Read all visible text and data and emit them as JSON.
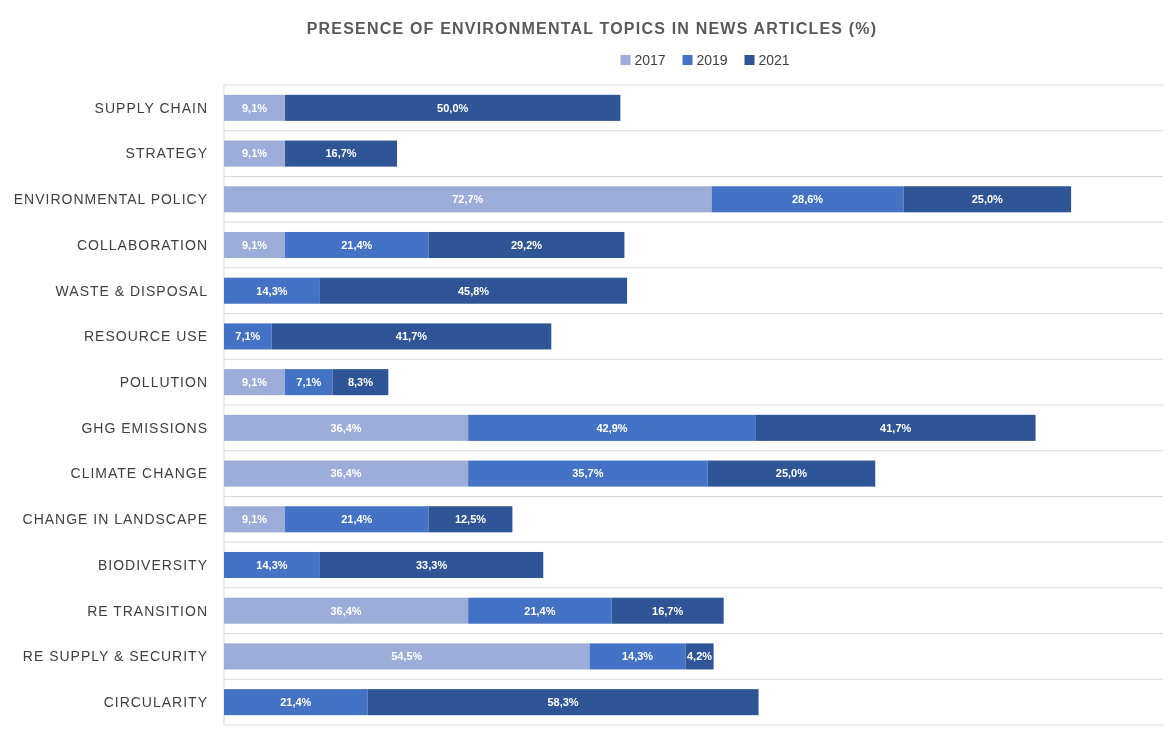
{
  "chart_data": {
    "type": "bar",
    "orientation": "horizontal",
    "stacked": true,
    "title": "PRESENCE OF ENVIRONMENTAL TOPICS IN NEWS ARTICLES (%)",
    "categories": [
      "SUPPLY CHAIN",
      "STRATEGY",
      "ENVIRONMENTAL POLICY",
      "COLLABORATION",
      "WASTE & DISPOSAL",
      "RESOURCE USE",
      "POLLUTION",
      "GHG EMISSIONS",
      "CLIMATE CHANGE",
      "CHANGE IN LANDSCAPE",
      "BIODIVERSITY",
      "RE TRANSITION",
      "RE SUPPLY & SECURITY",
      "CIRCULARITY"
    ],
    "series": [
      {
        "name": "2017",
        "color": "#9dadd9",
        "values": [
          9.1,
          9.1,
          72.7,
          9.1,
          null,
          null,
          9.1,
          36.4,
          36.4,
          9.1,
          null,
          36.4,
          54.5,
          null
        ],
        "value_labels": [
          "9,1%",
          "9,1%",
          "72,7%",
          "9,1%",
          null,
          null,
          "9,1%",
          "36,4%",
          "36,4%",
          "9,1%",
          null,
          "36,4%",
          "54,5%",
          null
        ]
      },
      {
        "name": "2019",
        "color": "#4472c4",
        "values": [
          null,
          null,
          28.6,
          21.4,
          14.3,
          7.1,
          7.1,
          42.9,
          35.7,
          21.4,
          14.3,
          21.4,
          14.3,
          21.4
        ],
        "value_labels": [
          null,
          null,
          "28,6%",
          "21,4%",
          "14,3%",
          "7,1%",
          "7,1%",
          "42,9%",
          "35,7%",
          "21,4%",
          "14,3%",
          "21,4%",
          "14,3%",
          "21,4%"
        ]
      },
      {
        "name": "2021",
        "color": "#2f5597",
        "values": [
          50.0,
          16.7,
          25.0,
          29.2,
          45.8,
          41.7,
          8.3,
          41.7,
          25.0,
          12.5,
          33.3,
          16.7,
          4.2,
          58.3
        ],
        "value_labels": [
          "50,0%",
          "16,7%",
          "25,0%",
          "29,2%",
          "45,8%",
          "41,7%",
          "8,3%",
          "41,7%",
          "25,0%",
          "12,5%",
          "33,3%",
          "16,7%",
          "4,2%",
          "58,3%"
        ]
      }
    ],
    "xlim": [
      0,
      140
    ],
    "tick_labels": "y",
    "grid": "y",
    "legend": "top"
  }
}
